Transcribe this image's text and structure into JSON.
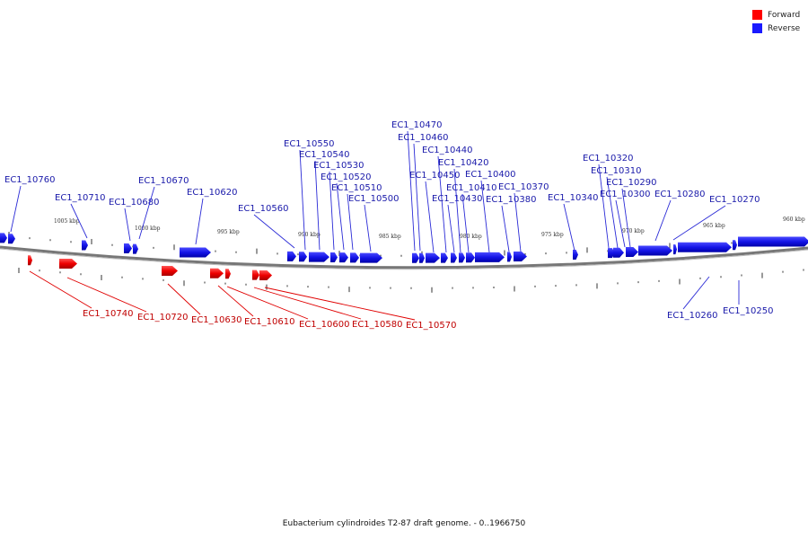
{
  "legend": [
    {
      "label": "Forward",
      "color": "#ff0000"
    },
    {
      "label": "Reverse",
      "color": "#1a1aff"
    }
  ],
  "caption": "Eubacterium cylindroides T2-87 draft genome. - 0..1966750",
  "scale_labels": [
    "1005 kbp",
    "1000 kbp",
    "995 kbp",
    "990 kbp",
    "985 kbp",
    "980 kbp",
    "975 kbp",
    "970 kbp",
    "965 kbp",
    "960 kbp"
  ],
  "reverse_genes": [
    "EC1_10760",
    "EC1_10710",
    "EC1_10680",
    "EC1_10670",
    "EC1_10620",
    "EC1_10560",
    "EC1_10550",
    "EC1_10540",
    "EC1_10530",
    "EC1_10520",
    "EC1_10510",
    "EC1_10500",
    "EC1_10470",
    "EC1_10460",
    "EC1_10450",
    "EC1_10440",
    "EC1_10430",
    "EC1_10420",
    "EC1_10410",
    "EC1_10400",
    "EC1_10380",
    "EC1_10370",
    "EC1_10340",
    "EC1_10320",
    "EC1_10310",
    "EC1_10300",
    "EC1_10290",
    "EC1_10280",
    "EC1_10270",
    "EC1_10260",
    "EC1_10250"
  ],
  "forward_genes": [
    "EC1_10740",
    "EC1_10720",
    "EC1_10630",
    "EC1_10610",
    "EC1_10600",
    "EC1_10580",
    "EC1_10570"
  ],
  "colors": {
    "forward": "#ff0000",
    "reverse": "#1a1aff",
    "backbone": "#888888"
  }
}
